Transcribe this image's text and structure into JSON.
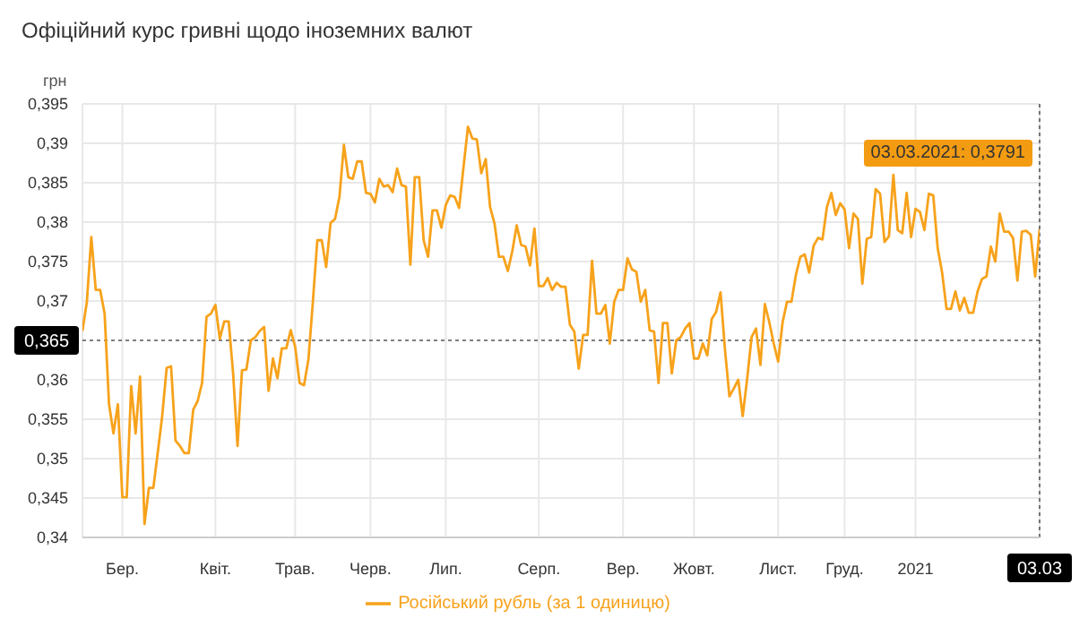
{
  "chart_data": {
    "type": "line",
    "title": "Офіційний курс гривні щодо іноземних валют",
    "ylabel": "грн",
    "categories": [
      null,
      null,
      null,
      null,
      null,
      null,
      null,
      null,
      null,
      "Бер.",
      null,
      null,
      null,
      null,
      null,
      null,
      null,
      null,
      null,
      null,
      null,
      null,
      null,
      null,
      null,
      null,
      null,
      null,
      null,
      null,
      "Квіт.",
      null,
      null,
      null,
      null,
      null,
      null,
      null,
      null,
      null,
      null,
      null,
      null,
      null,
      null,
      null,
      null,
      null,
      "Трав.",
      null,
      null,
      null,
      null,
      null,
      null,
      null,
      null,
      null,
      null,
      null,
      null,
      null,
      null,
      null,
      null,
      "Черв.",
      null,
      null,
      null,
      null,
      null,
      null,
      null,
      null,
      null,
      null,
      null,
      null,
      null,
      null,
      null,
      null,
      "Лип.",
      null,
      null,
      null,
      null,
      null,
      null,
      null,
      null,
      null,
      null,
      null,
      null,
      null,
      null,
      null,
      null,
      null,
      null,
      null,
      null,
      "Серп.",
      null,
      null,
      null,
      null,
      null,
      null,
      null,
      null,
      null,
      null,
      null,
      null,
      null,
      null,
      null,
      null,
      null,
      null,
      "Вер.",
      null,
      null,
      null,
      null,
      null,
      null,
      null,
      null,
      null,
      null,
      null,
      null,
      null,
      null,
      null,
      "Жовт.",
      null,
      null,
      null,
      null,
      null,
      null,
      null,
      null,
      null,
      null,
      null,
      null,
      null,
      null,
      null,
      null,
      null,
      null,
      "Лист.",
      null,
      null,
      null,
      null,
      null,
      null,
      null,
      null,
      null,
      null,
      null,
      null,
      null,
      null,
      "Груд.",
      null,
      null,
      null,
      null,
      null,
      null,
      null,
      null,
      null,
      null,
      null,
      null,
      null,
      null,
      null,
      "2021",
      null,
      null,
      null,
      null,
      null,
      null,
      null,
      null,
      null,
      null,
      null,
      null,
      null,
      null,
      null,
      null,
      null,
      null,
      null,
      null,
      null,
      null,
      null,
      null,
      null,
      null,
      null,
      "03.03"
    ],
    "series": [
      {
        "name": "Російський рубль (за 1 одиницю)",
        "color": "#f7a21b",
        "values": [
          0.3662,
          0.3699,
          0.3781,
          0.3714,
          0.3714,
          0.3684,
          0.3569,
          0.3532,
          0.3569,
          0.3451,
          0.3451,
          0.3592,
          0.3532,
          0.3604,
          0.3417,
          0.3463,
          0.3463,
          0.3508,
          0.3554,
          0.3615,
          0.3617,
          0.3523,
          0.3516,
          0.3507,
          0.3507,
          0.3562,
          0.3573,
          0.3596,
          0.368,
          0.3684,
          0.3695,
          0.3652,
          0.3674,
          0.3674,
          0.3608,
          0.3516,
          0.3612,
          0.3613,
          0.365,
          0.3654,
          0.3662,
          0.3667,
          0.3586,
          0.3627,
          0.3602,
          0.364,
          0.364,
          0.3663,
          0.3642,
          0.3596,
          0.3593,
          0.3626,
          0.3699,
          0.3777,
          0.3777,
          0.3743,
          0.3799,
          0.3804,
          0.3832,
          0.3898,
          0.3857,
          0.3855,
          0.3877,
          0.3877,
          0.3837,
          0.3836,
          0.3825,
          0.3855,
          0.3845,
          0.3847,
          0.3838,
          0.3868,
          0.3847,
          0.3845,
          0.3746,
          0.3857,
          0.3857,
          0.3777,
          0.3756,
          0.3815,
          0.3815,
          0.3793,
          0.3822,
          0.3834,
          0.3832,
          0.3818,
          0.387,
          0.3921,
          0.3906,
          0.3905,
          0.3862,
          0.388,
          0.3819,
          0.3798,
          0.3756,
          0.3756,
          0.3738,
          0.3763,
          0.3796,
          0.3771,
          0.3769,
          0.3745,
          0.3792,
          0.3719,
          0.3719,
          0.3729,
          0.3714,
          0.3723,
          0.3718,
          0.3718,
          0.367,
          0.3661,
          0.3614,
          0.3657,
          0.3657,
          0.3751,
          0.3684,
          0.3684,
          0.3695,
          0.3646,
          0.3699,
          0.3714,
          0.3714,
          0.3754,
          0.374,
          0.3737,
          0.3699,
          0.3714,
          0.3663,
          0.3661,
          0.3596,
          0.3672,
          0.3672,
          0.3608,
          0.365,
          0.3654,
          0.3665,
          0.3672,
          0.3627,
          0.3627,
          0.3646,
          0.3631,
          0.3677,
          0.3686,
          0.3711,
          0.3638,
          0.3579,
          0.3589,
          0.36,
          0.3554,
          0.3601,
          0.3654,
          0.3665,
          0.3619,
          0.3696,
          0.3673,
          0.3646,
          0.3623,
          0.3673,
          0.3699,
          0.3699,
          0.3733,
          0.3756,
          0.3759,
          0.3736,
          0.377,
          0.378,
          0.3778,
          0.3819,
          0.3837,
          0.3809,
          0.3824,
          0.3816,
          0.3767,
          0.3811,
          0.3804,
          0.3722,
          0.3779,
          0.3781,
          0.3842,
          0.3836,
          0.3775,
          0.3782,
          0.386,
          0.379,
          0.3786,
          0.3837,
          0.3781,
          0.3817,
          0.3813,
          0.379,
          0.3836,
          0.3834,
          0.3767,
          0.3736,
          0.369,
          0.369,
          0.3712,
          0.3688,
          0.3704,
          0.3685,
          0.3685,
          0.3712,
          0.3728,
          0.3731,
          0.3769,
          0.375,
          0.3811,
          0.3788,
          0.3788,
          0.378,
          0.3726,
          0.3788,
          0.3789,
          0.3784,
          0.3731,
          0.3791
        ]
      }
    ],
    "ylim": [
      0.34,
      0.395
    ],
    "yticks": [
      {
        "value": 0.34,
        "label": "0,34"
      },
      {
        "value": 0.345,
        "label": "0,345"
      },
      {
        "value": 0.35,
        "label": "0,35"
      },
      {
        "value": 0.355,
        "label": "0,355"
      },
      {
        "value": 0.36,
        "label": "0,36"
      },
      {
        "value": 0.37,
        "label": "0,37"
      },
      {
        "value": 0.375,
        "label": "0,375"
      },
      {
        "value": 0.38,
        "label": "0,38"
      },
      {
        "value": 0.385,
        "label": "0,385"
      },
      {
        "value": 0.39,
        "label": "0,39"
      },
      {
        "value": 0.395,
        "label": "0,395"
      }
    ],
    "ref_lines": [
      {
        "axis": "y",
        "value": 0.365,
        "label": "0,365",
        "color": "#000000",
        "line_style": "dotted"
      },
      {
        "axis": "x",
        "value": "03.03",
        "color": "#000000",
        "line_style": "dotted"
      }
    ],
    "annotations": [
      "03.03.2021: 0,3791"
    ],
    "grid": true,
    "legend": "bottom",
    "marker": "none",
    "line_style": "solid"
  }
}
